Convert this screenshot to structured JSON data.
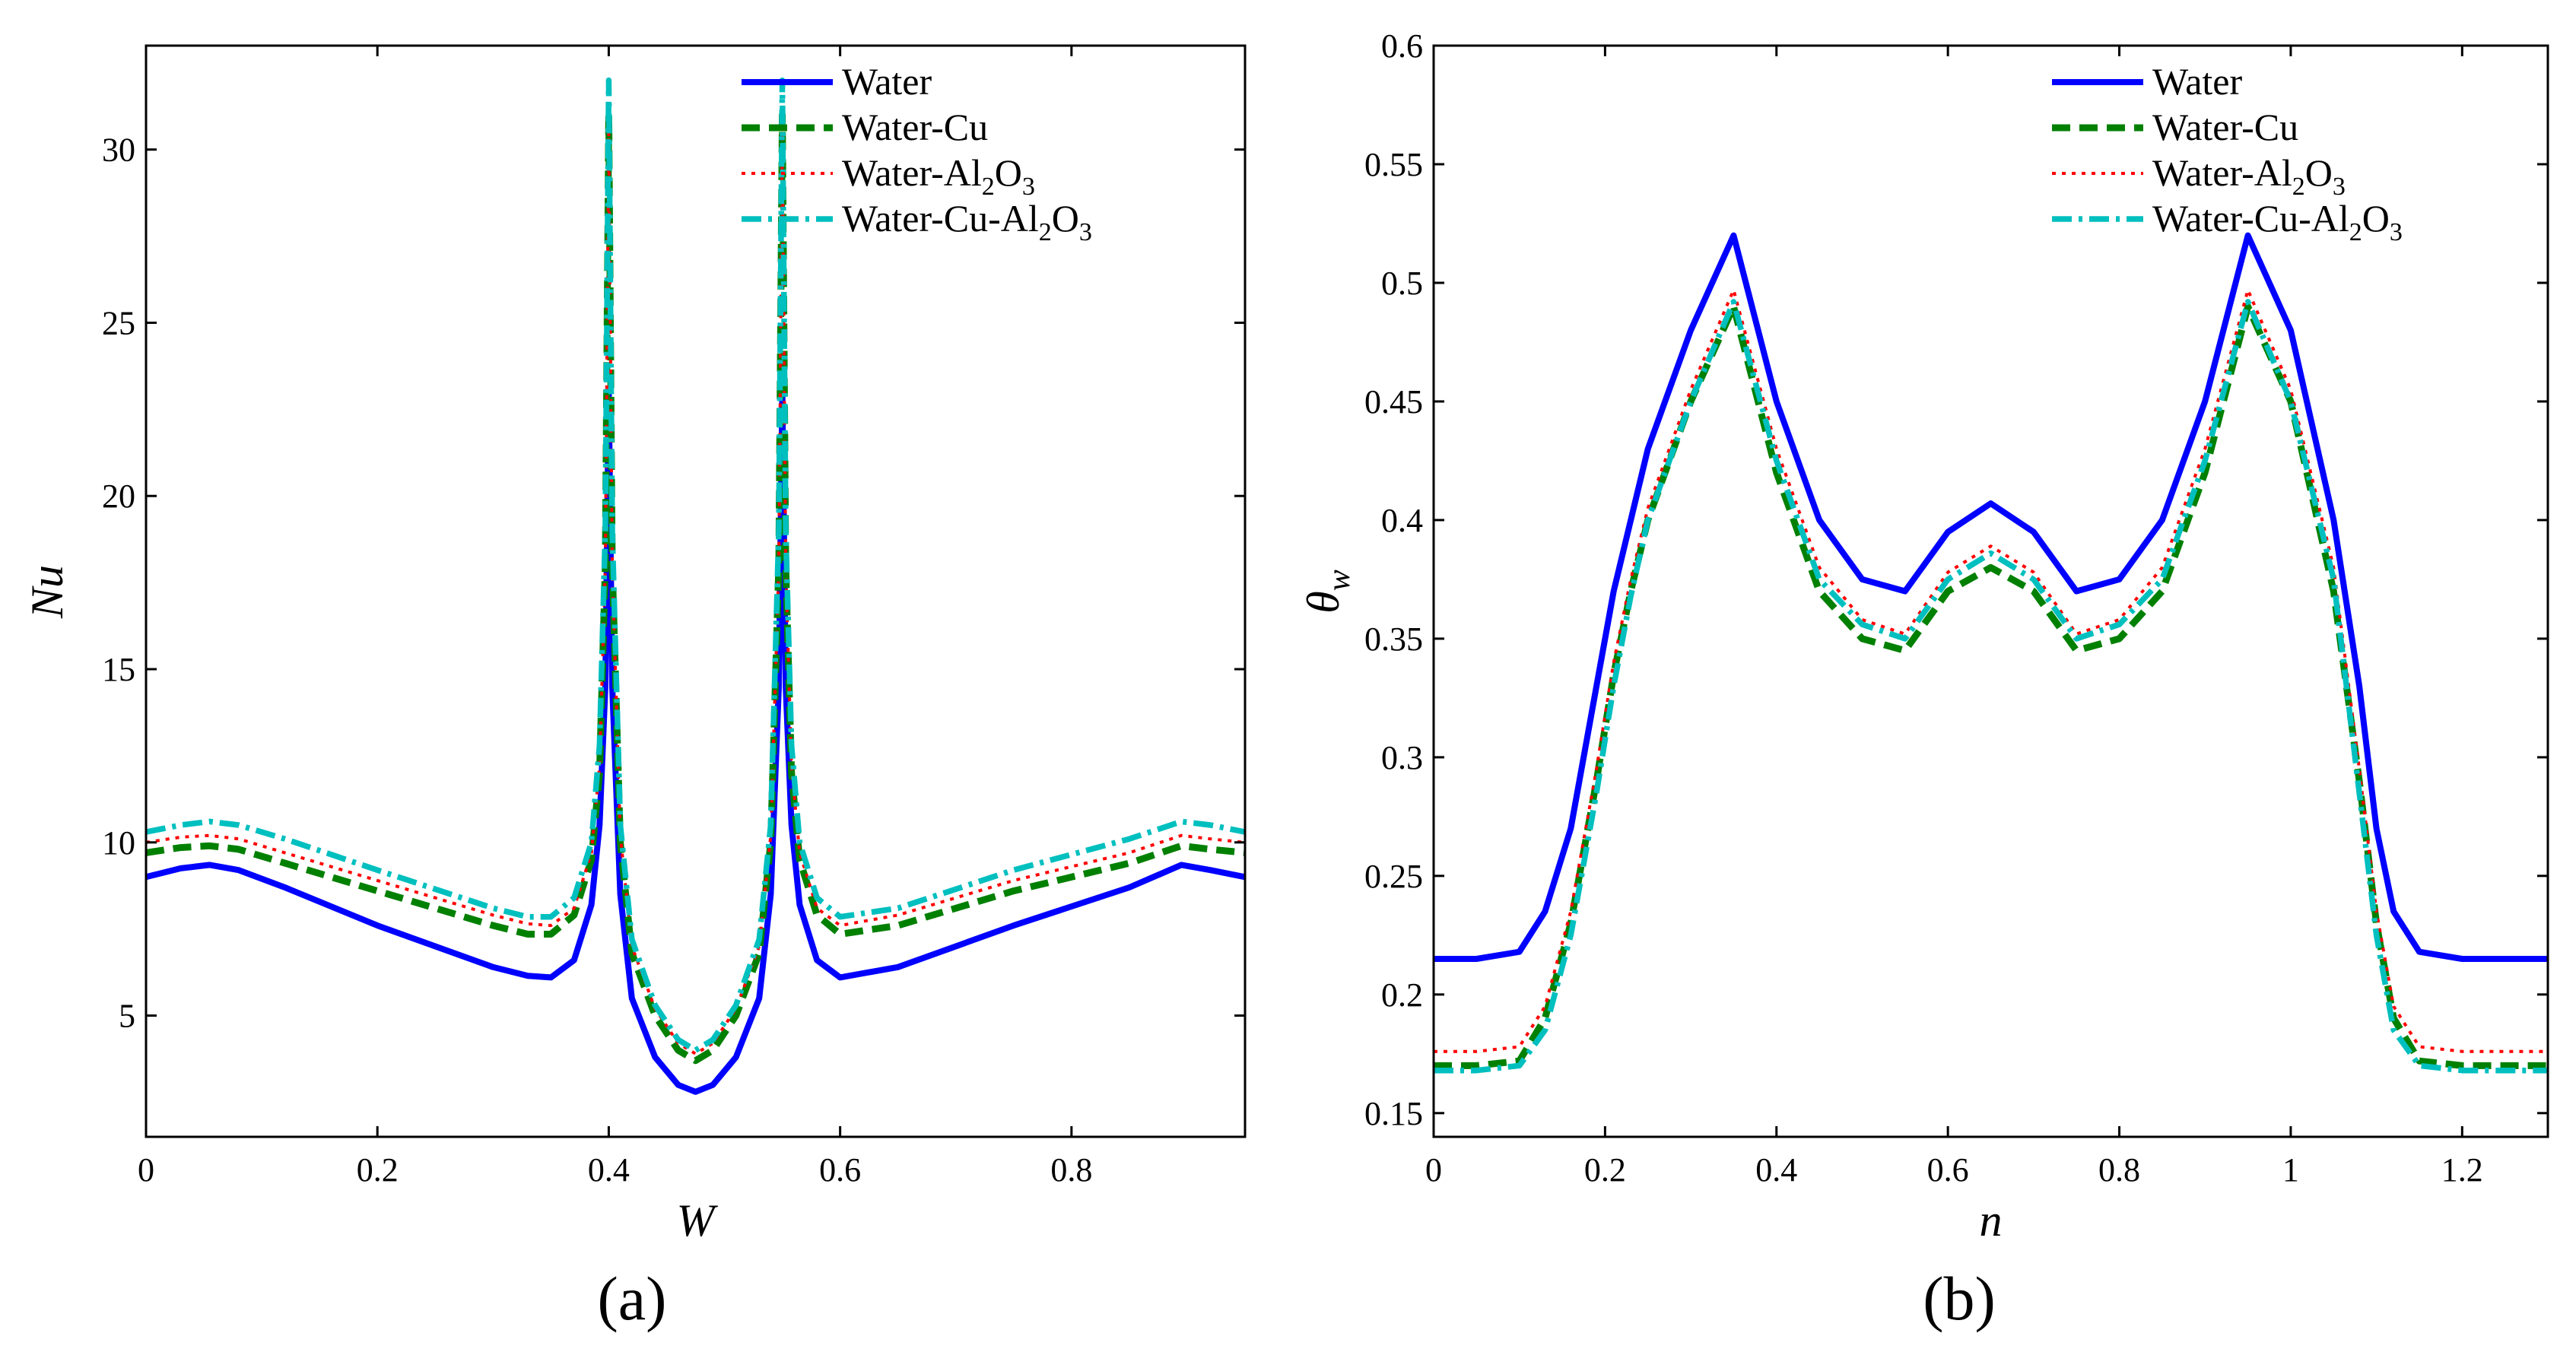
{
  "colors": {
    "water": "#0000ff",
    "water_cu": "#008000",
    "water_al2o3": "#ff0000",
    "water_cu_al2o3": "#00bfbf"
  },
  "chart_data": [
    {
      "type": "line",
      "panel_label": "(a)",
      "xlabel": "W",
      "ylabel": "Nu",
      "xlim": [
        0,
        0.95
      ],
      "ylim": [
        1.5,
        33
      ],
      "xticks": [
        0,
        0.2,
        0.4,
        0.6,
        0.8
      ],
      "xtick_labels": [
        "0",
        "0.2",
        "0.4",
        "0.6",
        "0.8"
      ],
      "yticks": [
        5,
        10,
        15,
        20,
        25,
        30
      ],
      "ytick_labels": [
        "5",
        "10",
        "15",
        "20",
        "25",
        "30"
      ],
      "legend_position": "top-right",
      "series": [
        {
          "name": "Water",
          "label_main": "Water",
          "label_sub_parts": [],
          "style": "solid",
          "color_key": "water",
          "x": [
            0,
            0.03,
            0.055,
            0.08,
            0.12,
            0.2,
            0.3,
            0.33,
            0.35,
            0.37,
            0.385,
            0.392,
            0.397,
            0.4,
            0.403,
            0.41,
            0.42,
            0.44,
            0.46,
            0.475,
            0.49,
            0.51,
            0.53,
            0.54,
            0.547,
            0.55,
            0.553,
            0.558,
            0.565,
            0.58,
            0.6,
            0.65,
            0.75,
            0.85,
            0.895,
            0.92,
            0.95
          ],
          "y": [
            9.0,
            9.25,
            9.35,
            9.2,
            8.7,
            7.6,
            6.4,
            6.15,
            6.1,
            6.6,
            8.2,
            10.5,
            14.5,
            23.0,
            14.5,
            8.5,
            5.5,
            3.8,
            3.0,
            2.8,
            3.0,
            3.8,
            5.5,
            8.5,
            14.5,
            23.0,
            14.5,
            10.5,
            8.2,
            6.6,
            6.1,
            6.4,
            7.6,
            8.7,
            9.35,
            9.2,
            9.0
          ]
        },
        {
          "name": "Water-Cu",
          "label_main": "Water-Cu",
          "label_sub_parts": [],
          "style": "dashed",
          "color_key": "water_cu",
          "x": [
            0,
            0.03,
            0.055,
            0.08,
            0.12,
            0.2,
            0.3,
            0.33,
            0.35,
            0.37,
            0.385,
            0.392,
            0.397,
            0.4,
            0.403,
            0.41,
            0.42,
            0.44,
            0.46,
            0.475,
            0.49,
            0.51,
            0.53,
            0.54,
            0.547,
            0.55,
            0.553,
            0.558,
            0.565,
            0.58,
            0.6,
            0.65,
            0.75,
            0.85,
            0.895,
            0.92,
            0.95
          ],
          "y": [
            9.7,
            9.85,
            9.9,
            9.8,
            9.4,
            8.6,
            7.6,
            7.35,
            7.35,
            7.9,
            9.5,
            12.0,
            18.0,
            31.0,
            18.0,
            10.0,
            6.8,
            5.0,
            4.0,
            3.7,
            4.0,
            5.0,
            6.8,
            10.0,
            18.0,
            31.0,
            18.0,
            12.0,
            9.5,
            7.9,
            7.35,
            7.6,
            8.6,
            9.4,
            9.9,
            9.8,
            9.7
          ]
        },
        {
          "name": "Water-Al2O3",
          "label_main": "Water-Al",
          "label_sub_parts": [
            "2",
            "O",
            "3"
          ],
          "style": "dotted",
          "color_key": "water_al2o3",
          "x": [
            0,
            0.03,
            0.055,
            0.08,
            0.12,
            0.2,
            0.3,
            0.33,
            0.35,
            0.37,
            0.385,
            0.392,
            0.397,
            0.4,
            0.403,
            0.41,
            0.42,
            0.44,
            0.46,
            0.475,
            0.49,
            0.51,
            0.53,
            0.54,
            0.547,
            0.55,
            0.553,
            0.558,
            0.565,
            0.58,
            0.6,
            0.65,
            0.75,
            0.85,
            0.895,
            0.92,
            0.95
          ],
          "y": [
            10.0,
            10.15,
            10.2,
            10.1,
            9.7,
            8.9,
            7.9,
            7.65,
            7.6,
            8.1,
            9.7,
            12.2,
            18.0,
            30.5,
            18.0,
            10.2,
            7.0,
            5.2,
            4.2,
            3.9,
            4.2,
            5.2,
            7.0,
            10.2,
            18.0,
            30.5,
            18.0,
            12.2,
            9.7,
            8.1,
            7.6,
            7.9,
            8.9,
            9.7,
            10.2,
            10.1,
            10.0
          ]
        },
        {
          "name": "Water-Cu-Al2O3",
          "label_main": "Water-Cu-Al",
          "label_sub_parts": [
            "2",
            "O",
            "3"
          ],
          "style": "dashdot",
          "color_key": "water_cu_al2o3",
          "x": [
            0,
            0.03,
            0.055,
            0.08,
            0.12,
            0.2,
            0.3,
            0.33,
            0.35,
            0.37,
            0.385,
            0.392,
            0.397,
            0.4,
            0.403,
            0.41,
            0.42,
            0.44,
            0.46,
            0.475,
            0.49,
            0.51,
            0.53,
            0.54,
            0.547,
            0.55,
            0.553,
            0.558,
            0.565,
            0.58,
            0.6,
            0.65,
            0.75,
            0.85,
            0.895,
            0.92,
            0.95
          ],
          "y": [
            10.3,
            10.5,
            10.6,
            10.5,
            10.1,
            9.2,
            8.1,
            7.85,
            7.85,
            8.4,
            10.0,
            12.8,
            19.0,
            32.0,
            19.0,
            10.5,
            7.2,
            5.3,
            4.3,
            4.0,
            4.3,
            5.3,
            7.2,
            10.5,
            19.0,
            32.0,
            19.0,
            12.8,
            10.0,
            8.4,
            7.85,
            8.1,
            9.2,
            10.1,
            10.6,
            10.5,
            10.3
          ]
        }
      ]
    },
    {
      "type": "line",
      "panel_label": "(b)",
      "xlabel": "n",
      "ylabel_main": "θ",
      "ylabel_sub": "w",
      "xlim": [
        0,
        1.3
      ],
      "ylim": [
        0.14,
        0.6
      ],
      "xticks": [
        0,
        0.2,
        0.4,
        0.6,
        0.8,
        1,
        1.2
      ],
      "xtick_labels": [
        "0",
        "0.2",
        "0.4",
        "0.6",
        "0.8",
        "1",
        "1.2"
      ],
      "yticks": [
        0.15,
        0.2,
        0.25,
        0.3,
        0.35,
        0.4,
        0.45,
        0.5,
        0.55,
        0.6
      ],
      "ytick_labels": [
        "0.15",
        "0.2",
        "0.25",
        "0.3",
        "0.35",
        "0.4",
        "0.45",
        "0.5",
        "0.55",
        "0.6"
      ],
      "legend_position": "top-right",
      "series": [
        {
          "name": "Water",
          "label_main": "Water",
          "label_sub_parts": [],
          "style": "solid",
          "color_key": "water",
          "x": [
            0,
            0.05,
            0.1,
            0.13,
            0.16,
            0.19,
            0.21,
            0.23,
            0.25,
            0.3,
            0.35,
            0.4,
            0.45,
            0.5,
            0.55,
            0.6,
            0.65,
            0.7,
            0.75,
            0.8,
            0.85,
            0.9,
            0.95,
            1.0,
            1.05,
            1.08,
            1.1,
            1.12,
            1.15,
            1.2,
            1.25,
            1.3
          ],
          "y": [
            0.215,
            0.215,
            0.218,
            0.235,
            0.27,
            0.33,
            0.37,
            0.4,
            0.43,
            0.48,
            0.52,
            0.45,
            0.4,
            0.375,
            0.37,
            0.395,
            0.407,
            0.395,
            0.37,
            0.375,
            0.4,
            0.45,
            0.52,
            0.48,
            0.4,
            0.33,
            0.27,
            0.235,
            0.218,
            0.215,
            0.215,
            0.215
          ]
        },
        {
          "name": "Water-Cu",
          "label_main": "Water-Cu",
          "label_sub_parts": [],
          "style": "dashed",
          "color_key": "water_cu",
          "x": [
            0,
            0.05,
            0.1,
            0.13,
            0.16,
            0.19,
            0.21,
            0.23,
            0.25,
            0.3,
            0.35,
            0.4,
            0.45,
            0.5,
            0.55,
            0.6,
            0.65,
            0.7,
            0.75,
            0.8,
            0.85,
            0.9,
            0.95,
            1.0,
            1.05,
            1.08,
            1.1,
            1.12,
            1.15,
            1.2,
            1.25,
            1.3
          ],
          "y": [
            0.17,
            0.17,
            0.172,
            0.19,
            0.23,
            0.29,
            0.335,
            0.37,
            0.4,
            0.45,
            0.49,
            0.42,
            0.37,
            0.35,
            0.345,
            0.37,
            0.38,
            0.37,
            0.345,
            0.35,
            0.37,
            0.42,
            0.49,
            0.45,
            0.37,
            0.29,
            0.23,
            0.19,
            0.172,
            0.17,
            0.17,
            0.17
          ]
        },
        {
          "name": "Water-Al2O3",
          "label_main": "Water-Al",
          "label_sub_parts": [
            "2",
            "O",
            "3"
          ],
          "style": "dotted",
          "color_key": "water_al2o3",
          "x": [
            0,
            0.05,
            0.1,
            0.13,
            0.16,
            0.19,
            0.21,
            0.23,
            0.25,
            0.3,
            0.35,
            0.4,
            0.45,
            0.5,
            0.55,
            0.6,
            0.65,
            0.7,
            0.75,
            0.8,
            0.85,
            0.9,
            0.95,
            1.0,
            1.05,
            1.08,
            1.1,
            1.12,
            1.15,
            1.2,
            1.25,
            1.3
          ],
          "y": [
            0.176,
            0.176,
            0.178,
            0.195,
            0.235,
            0.295,
            0.34,
            0.375,
            0.405,
            0.455,
            0.497,
            0.43,
            0.38,
            0.358,
            0.352,
            0.378,
            0.389,
            0.378,
            0.352,
            0.358,
            0.38,
            0.43,
            0.497,
            0.455,
            0.38,
            0.295,
            0.235,
            0.195,
            0.178,
            0.176,
            0.176,
            0.176
          ]
        },
        {
          "name": "Water-Cu-Al2O3",
          "label_main": "Water-Cu-Al",
          "label_sub_parts": [
            "2",
            "O",
            "3"
          ],
          "style": "dashdot",
          "color_key": "water_cu_al2o3",
          "x": [
            0,
            0.05,
            0.1,
            0.13,
            0.16,
            0.19,
            0.21,
            0.23,
            0.25,
            0.3,
            0.35,
            0.4,
            0.45,
            0.5,
            0.55,
            0.6,
            0.65,
            0.7,
            0.75,
            0.8,
            0.85,
            0.9,
            0.95,
            1.0,
            1.05,
            1.08,
            1.1,
            1.12,
            1.15,
            1.2,
            1.25,
            1.3
          ],
          "y": [
            0.168,
            0.168,
            0.17,
            0.185,
            0.225,
            0.285,
            0.33,
            0.368,
            0.4,
            0.45,
            0.492,
            0.425,
            0.375,
            0.356,
            0.35,
            0.375,
            0.386,
            0.375,
            0.35,
            0.356,
            0.375,
            0.425,
            0.492,
            0.45,
            0.375,
            0.285,
            0.225,
            0.185,
            0.17,
            0.168,
            0.168,
            0.168
          ]
        }
      ]
    }
  ]
}
